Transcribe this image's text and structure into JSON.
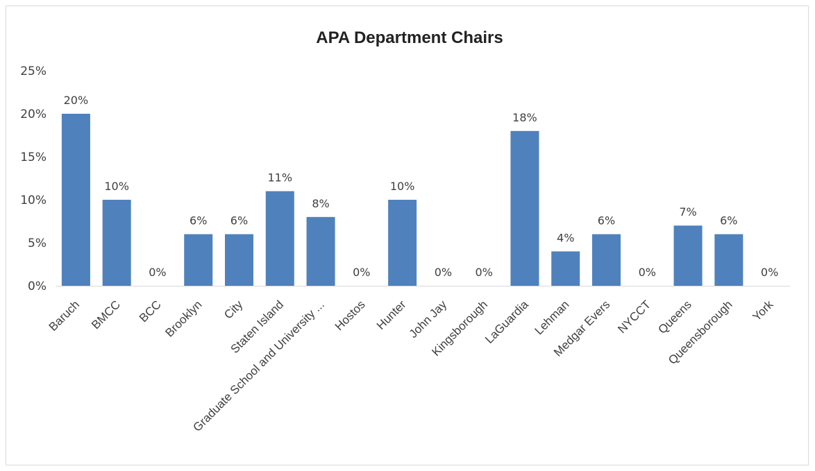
{
  "chart_data": {
    "type": "bar",
    "title": "APA Department Chairs",
    "xlabel": "",
    "ylabel": "",
    "ylim": [
      0,
      25
    ],
    "yticks": [
      "0%",
      "5%",
      "10%",
      "15%",
      "20%",
      "25%"
    ],
    "ytick_values": [
      0,
      5,
      10,
      15,
      20,
      25
    ],
    "grid": false,
    "legend": "none",
    "bar_color": "#4f81bd",
    "categories": [
      "Baruch",
      "BMCC",
      "BCC",
      "Brooklyn",
      "City",
      "Staten Island",
      "Graduate School and University ...",
      "Hostos",
      "Hunter",
      "John Jay",
      "Kingsborough",
      "LaGuardia",
      "Lehman",
      "Medgar Evers",
      "NYCCT",
      "Queens",
      "Queensborough",
      "York"
    ],
    "values": [
      20,
      10,
      0,
      6,
      6,
      11,
      8,
      0,
      10,
      0,
      0,
      18,
      4,
      6,
      0,
      7,
      6,
      0
    ],
    "data_labels": [
      "20%",
      "10%",
      "0%",
      "6%",
      "6%",
      "11%",
      "8%",
      "0%",
      "10%",
      "0%",
      "0%",
      "18%",
      "4%",
      "6%",
      "0%",
      "7%",
      "6%",
      "0%"
    ]
  }
}
